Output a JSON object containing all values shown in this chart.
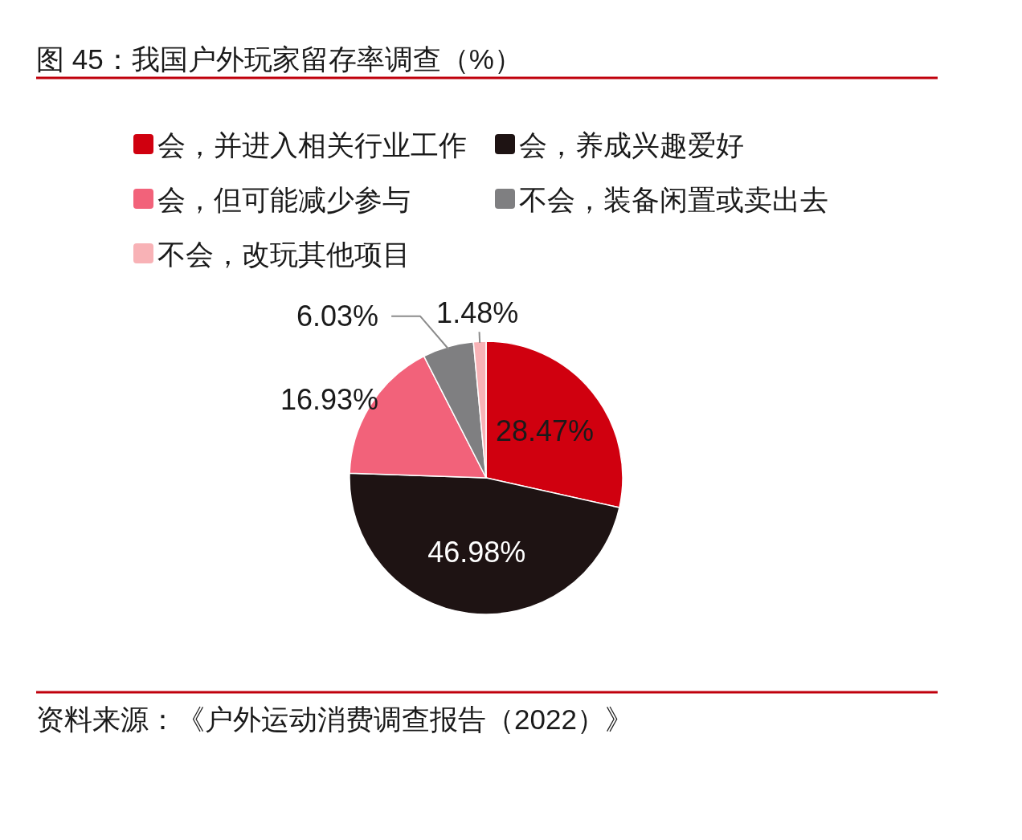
{
  "chart_data": {
    "type": "pie",
    "title": "图 45：我国户外玩家留存率调查（%）",
    "categories": [
      "会，并进入相关行业工作",
      "会，养成兴趣爱好",
      "会，但可能减少参与",
      "不会，装备闲置或卖出去",
      "不会，改玩其他项目"
    ],
    "values": [
      28.47,
      46.98,
      16.93,
      6.03,
      1.48
    ],
    "colors": [
      "#d0000f",
      "#1e1313",
      "#f2627a",
      "#7f7f81",
      "#f8b2b6"
    ],
    "value_labels": [
      "28.47%",
      "46.98%",
      "16.93%",
      "6.03%",
      "1.48%"
    ],
    "legend": "top",
    "annotations": [
      "资料来源：《户外运动消费调查报告（2022）》"
    ]
  }
}
